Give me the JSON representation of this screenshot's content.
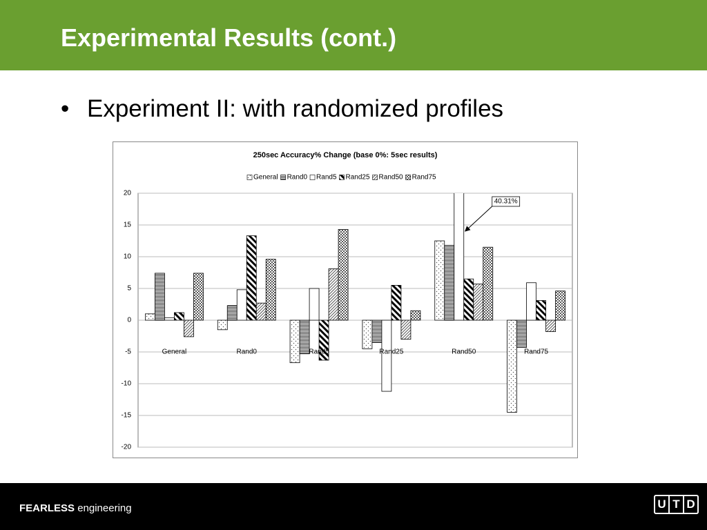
{
  "header": {
    "title": "Experimental Results (cont.)"
  },
  "bullet": "Experiment II: with randomized profiles",
  "footer": {
    "brand": "FEARLESS",
    "tagline": "engineering",
    "logo": [
      "U",
      "T",
      "D"
    ]
  },
  "chart_data": {
    "type": "bar",
    "title": "250sec Accuracy% Change (base 0%: 5sec results)",
    "categories": [
      "General",
      "Rand0",
      "Rand5",
      "Rand25",
      "Rand50",
      "Rand75"
    ],
    "series": [
      {
        "name": "General",
        "color": "#ffffff",
        "pattern": "sparse-dots",
        "values": [
          1.0,
          -1.5,
          -6.7,
          -4.5,
          12.5,
          -14.5
        ]
      },
      {
        "name": "Rand0",
        "color": "#ffffff",
        "pattern": "horizontal",
        "values": [
          7.4,
          2.3,
          -5.3,
          -3.5,
          11.8,
          -4.3
        ]
      },
      {
        "name": "Rand5",
        "color": "#ffffff",
        "pattern": "solid",
        "values": [
          0.4,
          4.8,
          5.0,
          -11.2,
          40.31,
          5.9
        ],
        "value_labels": [
          null,
          null,
          null,
          null,
          "40.31%",
          null
        ]
      },
      {
        "name": "Rand25",
        "color": "#ffffff",
        "pattern": "wide-diagonal",
        "values": [
          1.2,
          13.3,
          -6.3,
          5.5,
          6.5,
          3.1
        ]
      },
      {
        "name": "Rand50",
        "color": "#ffffff",
        "pattern": "thin-diagonal",
        "values": [
          -2.6,
          2.7,
          8.1,
          -3.0,
          5.7,
          -1.8
        ]
      },
      {
        "name": "Rand75",
        "color": "#ffffff",
        "pattern": "dense-dots",
        "values": [
          7.4,
          9.6,
          14.3,
          1.5,
          11.5,
          4.6
        ]
      }
    ],
    "ylim": [
      -20,
      20
    ],
    "yticks": [
      -20,
      -15,
      -10,
      -5,
      0,
      5,
      10,
      15,
      20
    ],
    "grid": true,
    "legend": "top"
  }
}
